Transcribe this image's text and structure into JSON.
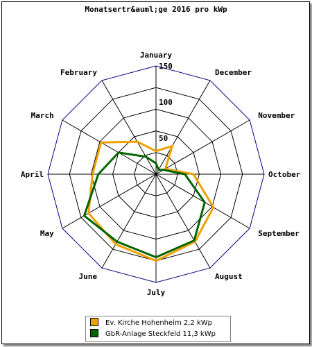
{
  "chart_data": {
    "type": "radar",
    "title": "Monatsertr&auml;ge 2016 pro kWp",
    "categories": [
      "January",
      "February",
      "March",
      "April",
      "May",
      "June",
      "July",
      "August",
      "September",
      "October",
      "November",
      "December"
    ],
    "radial_ticks": [
      "50",
      "100",
      "150"
    ],
    "rmax": 150,
    "ring_count": 5,
    "series": [
      {
        "name": "Ev. Kirche Hohenheim 2,2 kWp",
        "color": "#f0a000",
        "values": [
          32,
          52,
          88,
          88,
          108,
          112,
          120,
          108,
          92,
          52,
          15,
          45
        ]
      },
      {
        "name": "GbR-Anlage Steckfeld 11,3 kWp",
        "color": "#006400",
        "values": [
          15,
          28,
          60,
          80,
          115,
          108,
          115,
          106,
          78,
          40,
          12,
          7
        ]
      }
    ],
    "grid_color": "#000080",
    "legend_position": "bottom"
  }
}
